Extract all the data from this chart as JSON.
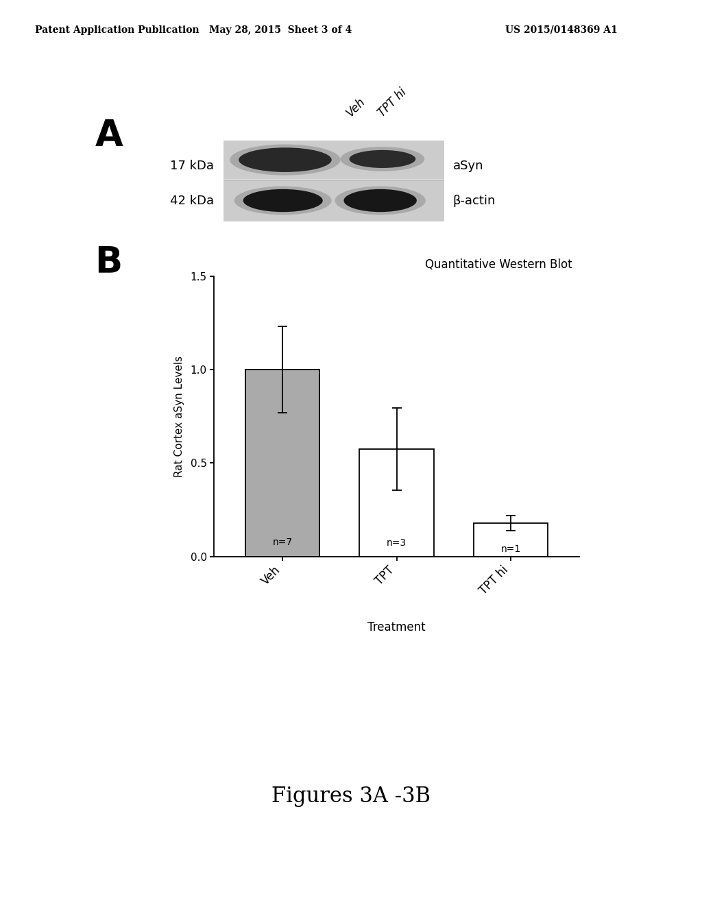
{
  "header_left": "Patent Application Publication",
  "header_mid": "May 28, 2015  Sheet 3 of 4",
  "header_right": "US 2015/0148369 A1",
  "panel_A_label": "A",
  "panel_B_label": "B",
  "western_blot_label_17": "17 kDa",
  "western_blot_label_42": "42 kDa",
  "label_asyn": "aSyn",
  "label_bactin": "β-actin",
  "col_label_veh": "Veh",
  "col_label_tpt": "TPT hi",
  "chart_title": "Quantitative Western Blot",
  "categories": [
    "Veh",
    "TPT",
    "TPT hi"
  ],
  "values": [
    1.0,
    0.575,
    0.18
  ],
  "errors": [
    0.23,
    0.22,
    0.04
  ],
  "bar_colors": [
    "#aaaaaa",
    "#ffffff",
    "#ffffff"
  ],
  "n_labels": [
    "n=7",
    "n=3",
    "n=1"
  ],
  "ylabel": "Rat Cortex aSyn Levels",
  "xlabel": "Treatment",
  "ylim": [
    0.0,
    1.5
  ],
  "yticks": [
    0.0,
    0.5,
    1.0,
    1.5
  ],
  "figure_caption": "Figures 3A -3B",
  "background_color": "#ffffff",
  "blot_bg_color": "#c8c8c8",
  "band_dark": "#111111",
  "band_mid": "#222222"
}
